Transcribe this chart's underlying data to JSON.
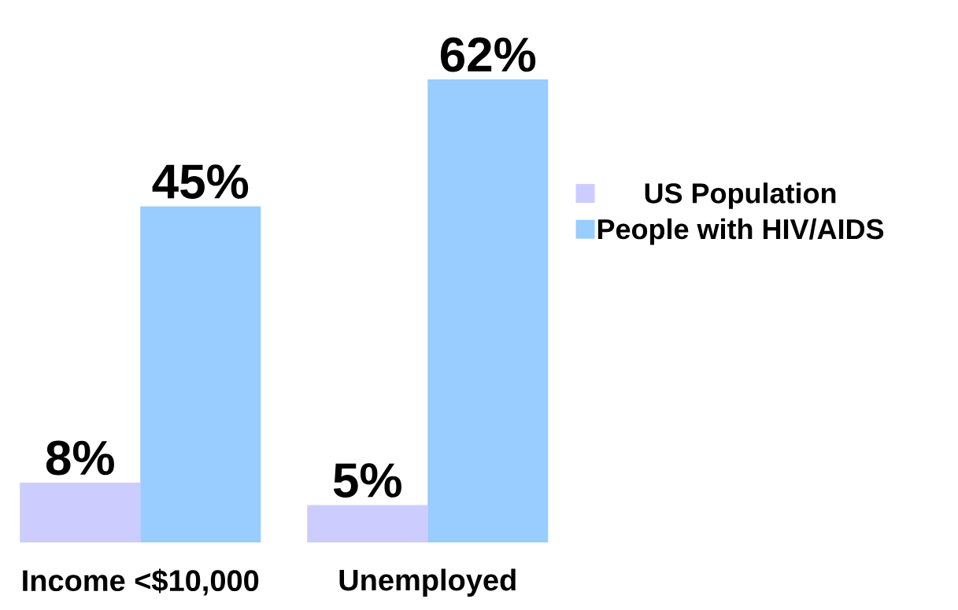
{
  "chart_data": {
    "type": "bar",
    "categories": [
      "Income <$10,000",
      "Unemployed"
    ],
    "series": [
      {
        "name": "US Population",
        "color": "#ccccff",
        "values": [
          8,
          5
        ],
        "value_labels": [
          "8%",
          "5%"
        ]
      },
      {
        "name": "People with HIV/AIDS",
        "color": "#99ccff",
        "values": [
          45,
          62
        ],
        "value_labels": [
          "45%",
          "62%"
        ]
      }
    ],
    "legend": "right"
  }
}
